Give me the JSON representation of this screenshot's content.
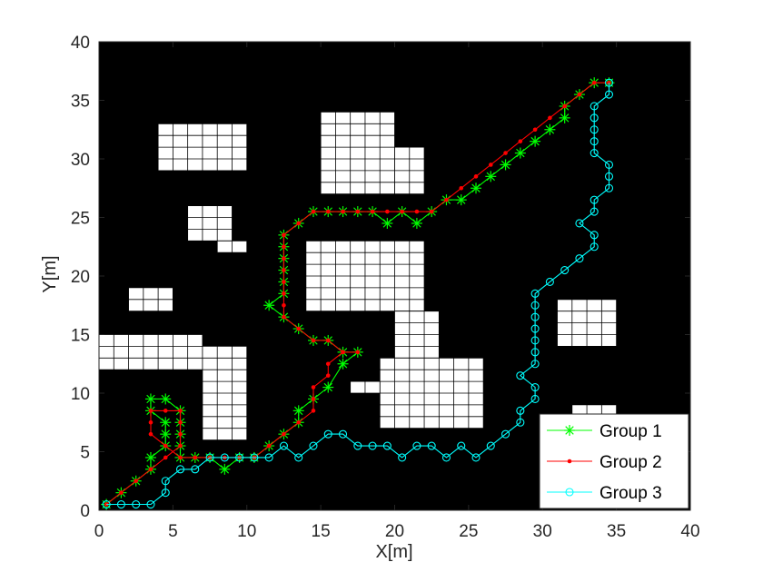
{
  "chart_data": {
    "type": "line",
    "xlabel": "X[m]",
    "ylabel": "Y[m]",
    "xlim": [
      0,
      40
    ],
    "ylim": [
      0,
      40
    ],
    "x_ticks": [
      0,
      5,
      10,
      15,
      20,
      25,
      30,
      35,
      40
    ],
    "y_ticks": [
      0,
      5,
      10,
      15,
      20,
      25,
      30,
      35,
      40
    ],
    "grid": false,
    "background": "#000000",
    "legend_position": "bottom-right",
    "obstacles": [
      {
        "x0": 4,
        "x1": 10,
        "y0": 29,
        "y1": 33
      },
      {
        "x0": 15,
        "x1": 20,
        "y0": 27,
        "y1": 34
      },
      {
        "x0": 20,
        "x1": 22,
        "y0": 27,
        "y1": 31
      },
      {
        "x0": 6,
        "x1": 9,
        "y0": 23,
        "y1": 26
      },
      {
        "x0": 8,
        "x1": 10,
        "y0": 22,
        "y1": 23
      },
      {
        "x0": 2,
        "x1": 5,
        "y0": 17,
        "y1": 19
      },
      {
        "x0": 14,
        "x1": 22,
        "y0": 17,
        "y1": 23
      },
      {
        "x0": 20,
        "x1": 23,
        "y0": 13,
        "y1": 17
      },
      {
        "x0": 0,
        "x1": 7,
        "y0": 12,
        "y1": 15
      },
      {
        "x0": 7,
        "x1": 10,
        "y0": 6,
        "y1": 14
      },
      {
        "x0": 19,
        "x1": 26,
        "y0": 7,
        "y1": 13
      },
      {
        "x0": 17,
        "x1": 19,
        "y0": 10,
        "y1": 11
      },
      {
        "x0": 31,
        "x1": 35,
        "y0": 14,
        "y1": 18
      },
      {
        "x0": 32,
        "x1": 35,
        "y0": 8,
        "y1": 9
      }
    ],
    "series": [
      {
        "name": "Group 1",
        "color": "#00ff00",
        "marker": "asterisk",
        "points": [
          [
            0.5,
            0.5
          ],
          [
            1.5,
            1.5
          ],
          [
            2.5,
            2.5
          ],
          [
            3.5,
            3.5
          ],
          [
            3.5,
            4.5
          ],
          [
            4.5,
            5.5
          ],
          [
            4.5,
            6.5
          ],
          [
            4.5,
            7.5
          ],
          [
            3.5,
            8.5
          ],
          [
            3.5,
            9.5
          ],
          [
            4.5,
            9.5
          ],
          [
            5.5,
            8.5
          ],
          [
            5.5,
            7.5
          ],
          [
            5.5,
            6.5
          ],
          [
            5.5,
            5.5
          ],
          [
            5.5,
            4.5
          ],
          [
            6.5,
            4.5
          ],
          [
            7.5,
            4.5
          ],
          [
            8.5,
            3.5
          ],
          [
            9.5,
            4.5
          ],
          [
            10.5,
            4.5
          ],
          [
            11.5,
            5.5
          ],
          [
            12.5,
            6.5
          ],
          [
            13.5,
            7.5
          ],
          [
            13.5,
            8.5
          ],
          [
            14.5,
            9.5
          ],
          [
            15.5,
            10.5
          ],
          [
            16.5,
            12.5
          ],
          [
            17.5,
            13.5
          ],
          [
            16.5,
            13.5
          ],
          [
            15.5,
            14.5
          ],
          [
            14.5,
            14.5
          ],
          [
            13.5,
            15.5
          ],
          [
            12.5,
            16.5
          ],
          [
            11.5,
            17.5
          ],
          [
            12.5,
            18.5
          ],
          [
            12.5,
            19.5
          ],
          [
            12.5,
            20.5
          ],
          [
            12.5,
            21.5
          ],
          [
            12.5,
            22.5
          ],
          [
            12.5,
            23.5
          ],
          [
            13.5,
            24.5
          ],
          [
            14.5,
            25.5
          ],
          [
            15.5,
            25.5
          ],
          [
            16.5,
            25.5
          ],
          [
            17.5,
            25.5
          ],
          [
            18.5,
            25.5
          ],
          [
            19.5,
            24.5
          ],
          [
            20.5,
            25.5
          ],
          [
            21.5,
            24.5
          ],
          [
            22.5,
            25.5
          ],
          [
            23.5,
            26.5
          ],
          [
            24.5,
            26.5
          ],
          [
            25.5,
            27.5
          ],
          [
            26.5,
            28.5
          ],
          [
            27.5,
            29.5
          ],
          [
            28.5,
            30.5
          ],
          [
            29.5,
            31.5
          ],
          [
            30.5,
            32.5
          ],
          [
            31.5,
            33.5
          ],
          [
            31.5,
            34.5
          ],
          [
            32.5,
            35.5
          ],
          [
            33.5,
            36.5
          ],
          [
            34.5,
            36.5
          ]
        ]
      },
      {
        "name": "Group 2",
        "color": "#ff0000",
        "marker": "point",
        "points": [
          [
            0.5,
            0.5
          ],
          [
            1.5,
            1.5
          ],
          [
            2.5,
            2.5
          ],
          [
            3.5,
            3.5
          ],
          [
            4.5,
            4.5
          ],
          [
            5.5,
            5.5
          ],
          [
            5.5,
            6.5
          ],
          [
            5.5,
            7.5
          ],
          [
            5.5,
            8.5
          ],
          [
            4.5,
            8.5
          ],
          [
            3.5,
            8.5
          ],
          [
            3.5,
            7.5
          ],
          [
            3.5,
            6.5
          ],
          [
            4.5,
            5.5
          ],
          [
            5.5,
            4.5
          ],
          [
            6.5,
            4.5
          ],
          [
            7.5,
            4.5
          ],
          [
            8.5,
            4.5
          ],
          [
            9.5,
            4.5
          ],
          [
            10.5,
            4.5
          ],
          [
            11.5,
            5.5
          ],
          [
            12.5,
            6.5
          ],
          [
            13.5,
            7.5
          ],
          [
            14.5,
            8.5
          ],
          [
            14.5,
            9.5
          ],
          [
            14.5,
            10.5
          ],
          [
            15.5,
            11.5
          ],
          [
            15.5,
            12.5
          ],
          [
            16.5,
            13.5
          ],
          [
            17.5,
            13.5
          ],
          [
            16.5,
            13.5
          ],
          [
            15.5,
            14.5
          ],
          [
            14.5,
            14.5
          ],
          [
            13.5,
            15.5
          ],
          [
            12.5,
            16.5
          ],
          [
            12.5,
            17.5
          ],
          [
            12.5,
            18.5
          ],
          [
            12.5,
            19.5
          ],
          [
            12.5,
            20.5
          ],
          [
            12.5,
            21.5
          ],
          [
            12.5,
            22.5
          ],
          [
            12.5,
            23.5
          ],
          [
            13.5,
            24.5
          ],
          [
            14.5,
            25.5
          ],
          [
            15.5,
            25.5
          ],
          [
            16.5,
            25.5
          ],
          [
            17.5,
            25.5
          ],
          [
            18.5,
            25.5
          ],
          [
            19.5,
            25.5
          ],
          [
            20.5,
            25.5
          ],
          [
            21.5,
            25.5
          ],
          [
            22.5,
            25.5
          ],
          [
            23.5,
            26.5
          ],
          [
            24.5,
            27.5
          ],
          [
            25.5,
            28.5
          ],
          [
            26.5,
            29.5
          ],
          [
            27.5,
            30.5
          ],
          [
            28.5,
            31.5
          ],
          [
            29.5,
            32.5
          ],
          [
            30.5,
            33.5
          ],
          [
            31.5,
            34.5
          ],
          [
            32.5,
            35.5
          ],
          [
            33.5,
            36.5
          ],
          [
            34.5,
            36.5
          ]
        ]
      },
      {
        "name": "Group 3",
        "color": "#00ffff",
        "marker": "circle",
        "points": [
          [
            0.5,
            0.5
          ],
          [
            1.5,
            0.5
          ],
          [
            2.5,
            0.5
          ],
          [
            3.5,
            0.5
          ],
          [
            4.5,
            1.5
          ],
          [
            4.5,
            2.5
          ],
          [
            5.5,
            3.5
          ],
          [
            6.5,
            3.5
          ],
          [
            7.5,
            4.5
          ],
          [
            8.5,
            4.5
          ],
          [
            9.5,
            4.5
          ],
          [
            10.5,
            4.5
          ],
          [
            11.5,
            4.5
          ],
          [
            12.5,
            5.5
          ],
          [
            13.5,
            4.5
          ],
          [
            14.5,
            5.5
          ],
          [
            15.5,
            6.5
          ],
          [
            16.5,
            6.5
          ],
          [
            17.5,
            5.5
          ],
          [
            18.5,
            5.5
          ],
          [
            19.5,
            5.5
          ],
          [
            20.5,
            4.5
          ],
          [
            21.5,
            5.5
          ],
          [
            22.5,
            5.5
          ],
          [
            23.5,
            4.5
          ],
          [
            24.5,
            5.5
          ],
          [
            25.5,
            4.5
          ],
          [
            26.5,
            5.5
          ],
          [
            27.5,
            6.5
          ],
          [
            28.5,
            7.5
          ],
          [
            28.5,
            8.5
          ],
          [
            29.5,
            9.5
          ],
          [
            29.5,
            10.5
          ],
          [
            28.5,
            11.5
          ],
          [
            29.5,
            12.5
          ],
          [
            29.5,
            13.5
          ],
          [
            29.5,
            14.5
          ],
          [
            29.5,
            15.5
          ],
          [
            29.5,
            16.5
          ],
          [
            29.5,
            17.5
          ],
          [
            29.5,
            18.5
          ],
          [
            30.5,
            19.5
          ],
          [
            31.5,
            20.5
          ],
          [
            32.5,
            21.5
          ],
          [
            33.5,
            22.5
          ],
          [
            33.5,
            23.5
          ],
          [
            32.5,
            24.5
          ],
          [
            33.5,
            25.5
          ],
          [
            33.5,
            26.5
          ],
          [
            34.5,
            27.5
          ],
          [
            34.5,
            28.5
          ],
          [
            34.5,
            29.5
          ],
          [
            33.5,
            30.5
          ],
          [
            33.5,
            31.5
          ],
          [
            33.5,
            32.5
          ],
          [
            33.5,
            33.5
          ],
          [
            33.5,
            34.5
          ],
          [
            34.5,
            35.5
          ],
          [
            34.5,
            36.5
          ]
        ]
      }
    ]
  }
}
